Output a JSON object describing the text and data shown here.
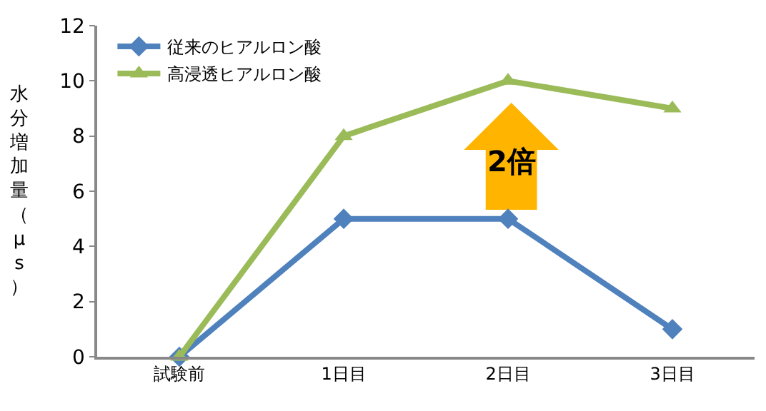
{
  "chart_data": {
    "type": "line",
    "categories": [
      "試験前",
      "1日目",
      "2日目",
      "3日目"
    ],
    "ylabel": "水分増加量（μs）",
    "series": [
      {
        "name": "従来のヒアルロン酸",
        "color": "#4f81bd",
        "marker": "diamond",
        "values": [
          0,
          5,
          5,
          1
        ]
      },
      {
        "name": "高浸透ヒアルロン酸",
        "color": "#9bbb59",
        "marker": "triangle",
        "values": [
          0,
          8,
          10,
          9
        ]
      }
    ],
    "annotations": [
      "2倍"
    ],
    "ylim": [
      0,
      12
    ],
    "yticks": [
      0,
      2,
      4,
      6,
      8,
      10,
      12
    ],
    "grid": false,
    "legend": "top left"
  }
}
